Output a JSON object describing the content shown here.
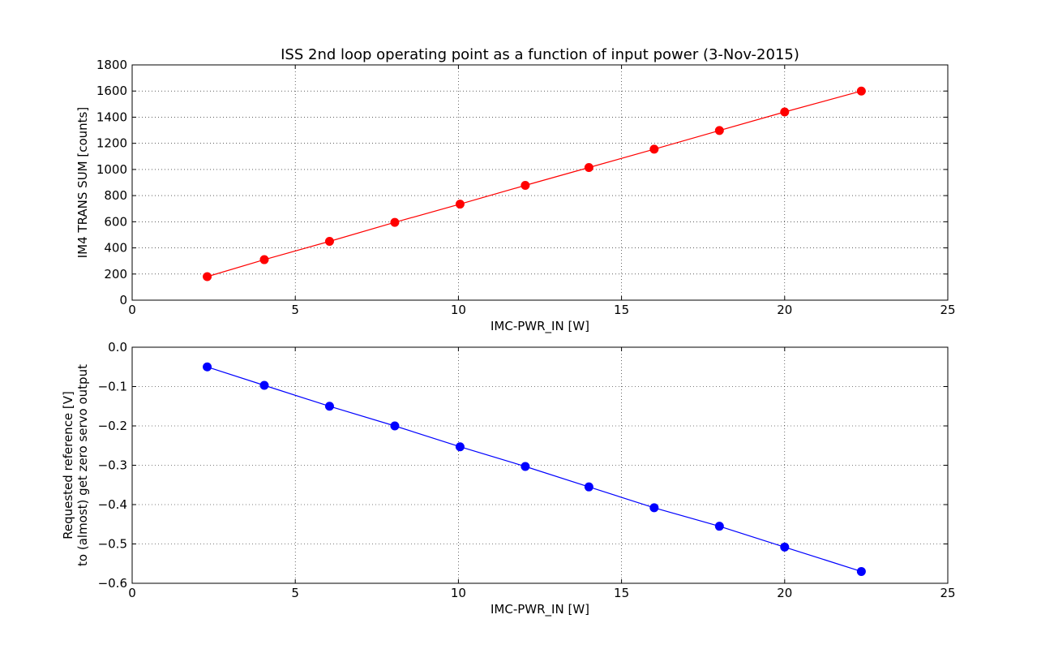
{
  "figure_title": "ISS 2nd loop operating point as a function of input power (3-Nov-2015)",
  "chart_data": [
    {
      "type": "line",
      "title": "ISS 2nd loop operating point as a function of input power (3-Nov-2015)",
      "xlabel": "IMC-PWR_IN [W]",
      "ylabel": [
        "IM4 TRANS SUM [counts]"
      ],
      "xlim": [
        0,
        25
      ],
      "ylim": [
        0,
        1800
      ],
      "xticks": [
        0,
        5,
        10,
        15,
        20,
        25
      ],
      "yticks": [
        0,
        200,
        400,
        600,
        800,
        1000,
        1200,
        1400,
        1600,
        1800
      ],
      "xtick_labels": [
        "0",
        "5",
        "10",
        "15",
        "20",
        "25"
      ],
      "ytick_labels": [
        "0",
        "200",
        "400",
        "600",
        "800",
        "1000",
        "1200",
        "1400",
        "1600",
        "1800"
      ],
      "grid": true,
      "series": [
        {
          "color": "#ff0000",
          "marker": "circle",
          "x": [
            2.3,
            4.05,
            6.05,
            8.05,
            10.05,
            12.05,
            14.0,
            16.0,
            18.0,
            20.0,
            22.35
          ],
          "y": [
            180,
            310,
            450,
            595,
            735,
            878,
            1015,
            1155,
            1298,
            1440,
            1600
          ]
        }
      ]
    },
    {
      "type": "line",
      "xlabel": "IMC-PWR_IN [W]",
      "ylabel": [
        "Requested reference [V]",
        "to (almost) get zero servo output"
      ],
      "xlim": [
        0,
        25
      ],
      "ylim": [
        -0.6,
        0.0
      ],
      "xticks": [
        0,
        5,
        10,
        15,
        20,
        25
      ],
      "yticks": [
        -0.6,
        -0.5,
        -0.4,
        -0.3,
        -0.2,
        -0.1,
        0.0
      ],
      "xtick_labels": [
        "0",
        "5",
        "10",
        "15",
        "20",
        "25"
      ],
      "ytick_labels": [
        "−0.6",
        "−0.5",
        "−0.4",
        "−0.3",
        "−0.2",
        "−0.1",
        "0.0"
      ],
      "grid": true,
      "series": [
        {
          "color": "#0000ff",
          "marker": "circle",
          "x": [
            2.3,
            4.05,
            6.05,
            8.05,
            10.05,
            12.05,
            14.0,
            16.0,
            18.0,
            20.0,
            22.35
          ],
          "y": [
            -0.05,
            -0.097,
            -0.15,
            -0.2,
            -0.253,
            -0.303,
            -0.355,
            -0.408,
            -0.455,
            -0.508,
            -0.57
          ]
        }
      ]
    }
  ]
}
